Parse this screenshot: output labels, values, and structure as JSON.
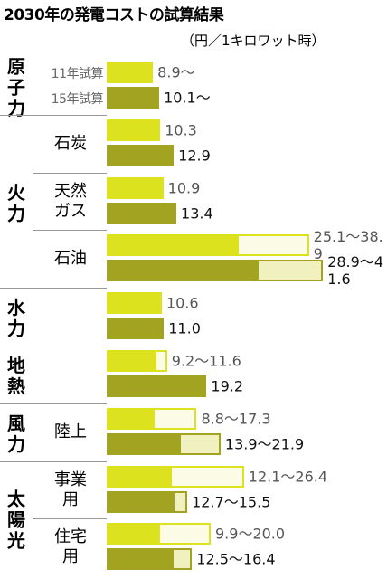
{
  "chart_data": {
    "type": "bar",
    "orientation": "horizontal",
    "title": "2030年の発電コストの試算結果",
    "subtitle": "（円／1キロワット時）",
    "groups": [
      {
        "label": "原子力",
        "categories": [
          null
        ]
      },
      {
        "label": "火力",
        "categories": [
          "石炭",
          "天然ガス",
          "石油"
        ]
      },
      {
        "label": "水力",
        "categories": [
          null
        ]
      },
      {
        "label": "地熱",
        "categories": [
          null
        ]
      },
      {
        "label": "風力",
        "categories": [
          "陸上"
        ]
      },
      {
        "label": "太陽光",
        "categories": [
          "事業用",
          "住宅用"
        ]
      }
    ],
    "series": [
      {
        "name": "11年試算",
        "color": "#dde21f",
        "range_color": "#fbfbe6",
        "label_color": "#555555",
        "values": [
          8.9,
          10.3,
          10.9,
          25.1,
          10.6,
          9.2,
          8.8,
          12.1,
          9.9
        ],
        "max_values": [
          null,
          null,
          null,
          38.9,
          null,
          11.6,
          17.3,
          26.4,
          20.0
        ],
        "value_labels": [
          "8.9〜",
          "10.3",
          "10.9",
          "25.1〜38.9",
          "10.6",
          "9.2〜11.6",
          "8.8〜17.3",
          "12.1〜26.4",
          "9.9〜20.0"
        ]
      },
      {
        "name": "15年試算",
        "color": "#a3a322",
        "range_color": "#f1f1bf",
        "label_color": "#111111",
        "values": [
          10.1,
          12.9,
          13.4,
          28.9,
          11.0,
          19.2,
          13.9,
          12.7,
          12.5
        ],
        "max_values": [
          null,
          null,
          null,
          41.6,
          null,
          null,
          21.9,
          15.5,
          16.4
        ],
        "value_labels": [
          "10.1〜",
          "12.9",
          "13.4",
          "28.9〜41.6",
          "11.0",
          "19.2",
          "13.9〜21.9",
          "12.7〜15.5",
          "12.5〜16.4"
        ]
      }
    ]
  }
}
